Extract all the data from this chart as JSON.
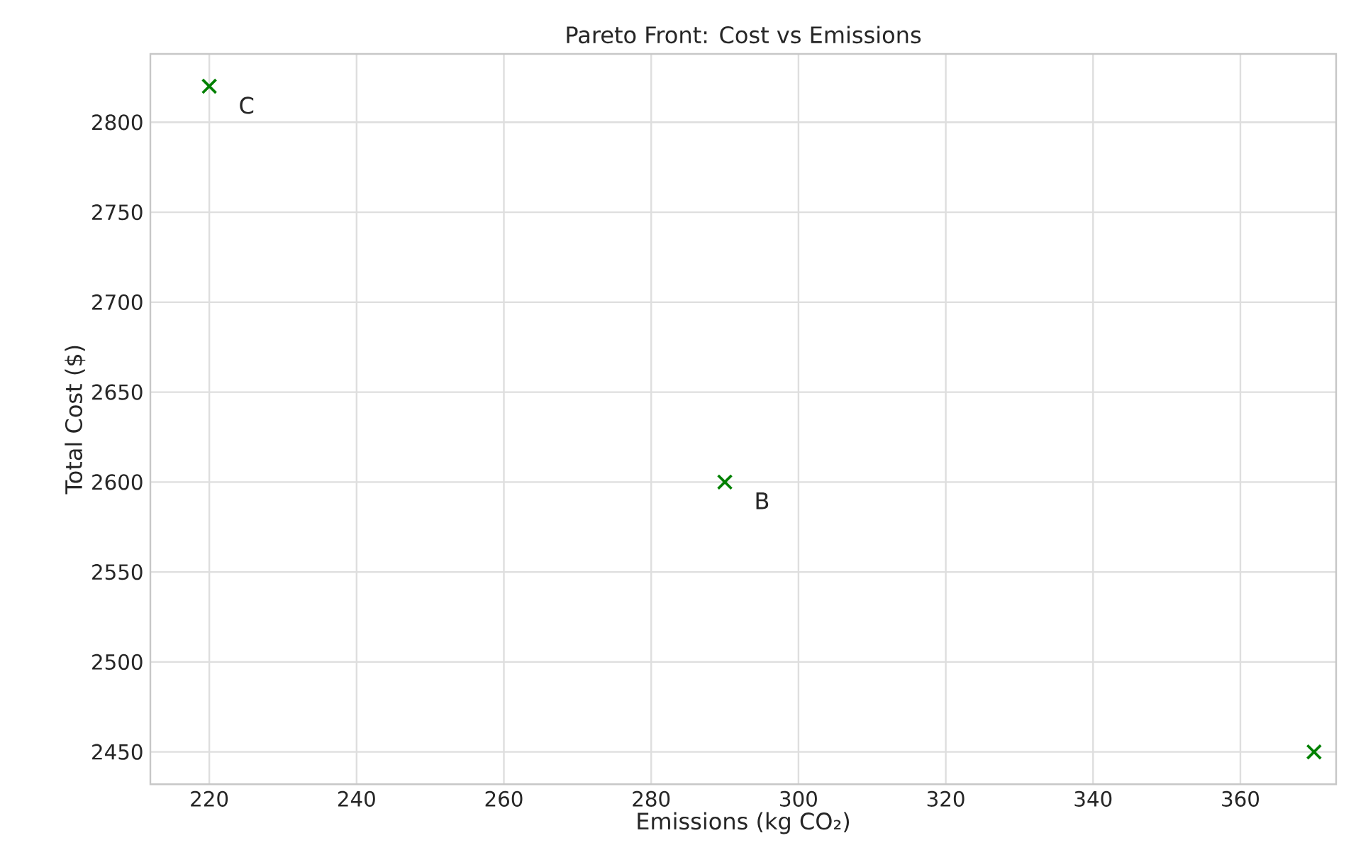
{
  "chart_data": {
    "type": "scatter",
    "title": "Pareto Front: Cost vs Emissions",
    "xlabel": "Emissions (kg CO₂)",
    "ylabel": "Total Cost ($)",
    "x": [
      220,
      290,
      370
    ],
    "series": [
      {
        "color": "#008000",
        "values": [
          2820,
          2600,
          2450
        ]
      }
    ],
    "marker": "cross",
    "grid": true,
    "xlim": [
      212,
      373
    ],
    "ylim": [
      2432,
      2838
    ],
    "xticks": [
      220,
      240,
      260,
      280,
      300,
      320,
      340,
      360
    ],
    "yticks": [
      2450,
      2500,
      2550,
      2600,
      2650,
      2700,
      2750,
      2800
    ],
    "annotations": [
      {
        "text": "C",
        "x": 220,
        "y": 2820
      },
      {
        "text": "B",
        "x": 290,
        "y": 2600
      }
    ]
  }
}
